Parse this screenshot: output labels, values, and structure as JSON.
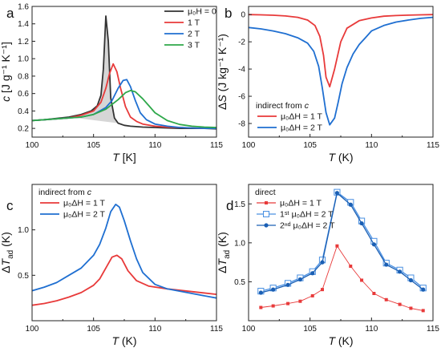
{
  "chart_data": [
    {
      "panel": "a",
      "type": "line",
      "xlabel": "T [K]",
      "ylabel": "c [J g⁻¹ K⁻¹]",
      "xlim": [
        100,
        115
      ],
      "ylim": [
        0.1,
        1.6
      ],
      "xticks": [
        100,
        105,
        110,
        115
      ],
      "yticks": [
        0.2,
        0.4,
        0.6,
        0.8,
        1.0,
        1.2,
        1.4,
        1.6
      ],
      "legend": {
        "placement": "top-right"
      },
      "shaded_area": {
        "color": "#c8c8c8"
      },
      "series": [
        {
          "name": "μ₀H = 0",
          "color": "#333333",
          "x": [
            100,
            101,
            102,
            103,
            104,
            104.8,
            105.3,
            105.6,
            105.8,
            106.0,
            106.2,
            106.4,
            106.7,
            107,
            107.5,
            108,
            109,
            110,
            111,
            112,
            113,
            114,
            115
          ],
          "y": [
            0.29,
            0.3,
            0.315,
            0.33,
            0.36,
            0.4,
            0.46,
            0.58,
            0.88,
            1.49,
            1.2,
            0.55,
            0.32,
            0.26,
            0.235,
            0.225,
            0.215,
            0.21,
            0.205,
            0.2,
            0.2,
            0.2,
            0.195
          ]
        },
        {
          "name": "1 T",
          "color": "#e83a3a",
          "x": [
            100,
            101,
            102,
            103,
            104,
            105,
            105.6,
            106,
            106.3,
            106.6,
            106.9,
            107.2,
            107.6,
            108,
            108.5,
            109,
            110,
            111,
            112,
            113,
            114,
            115
          ],
          "y": [
            0.29,
            0.3,
            0.31,
            0.32,
            0.35,
            0.4,
            0.5,
            0.66,
            0.83,
            0.94,
            0.85,
            0.66,
            0.45,
            0.33,
            0.28,
            0.25,
            0.225,
            0.215,
            0.21,
            0.205,
            0.2,
            0.2
          ]
        },
        {
          "name": "2 T",
          "color": "#1f6fd1",
          "x": [
            100,
            101,
            102,
            103,
            104,
            105,
            106,
            106.5,
            107,
            107.4,
            107.7,
            108,
            108.4,
            108.8,
            109.3,
            110,
            111,
            112,
            113,
            114,
            115
          ],
          "y": [
            0.29,
            0.3,
            0.31,
            0.32,
            0.33,
            0.36,
            0.44,
            0.52,
            0.66,
            0.75,
            0.76,
            0.68,
            0.52,
            0.38,
            0.3,
            0.25,
            0.225,
            0.21,
            0.205,
            0.2,
            0.2
          ]
        },
        {
          "name": "3 T",
          "color": "#2ea84a",
          "x": [
            100,
            101,
            102,
            103,
            104,
            105,
            106,
            107,
            107.6,
            108,
            108.4,
            109,
            109.5,
            110,
            111,
            112,
            113,
            114,
            115
          ],
          "y": [
            0.29,
            0.3,
            0.31,
            0.32,
            0.33,
            0.36,
            0.42,
            0.53,
            0.61,
            0.635,
            0.62,
            0.54,
            0.46,
            0.38,
            0.29,
            0.245,
            0.225,
            0.215,
            0.21
          ]
        }
      ]
    },
    {
      "panel": "b",
      "type": "line",
      "xlabel": "T (K)",
      "ylabel": "ΔS (J kg⁻¹ K⁻¹)",
      "xlim": [
        100,
        115
      ],
      "ylim": [
        -9,
        0.6
      ],
      "xticks": [
        100,
        105,
        110,
        115
      ],
      "yticks": [
        -8,
        -6,
        -4,
        -2,
        0
      ],
      "legend": {
        "title": "indirect from c",
        "placement": "bottom-left"
      },
      "series": [
        {
          "name": "μ₀ΔH = 1 T",
          "color": "#e83a3a",
          "x": [
            100,
            101,
            102,
            103,
            104,
            104.8,
            105.4,
            105.8,
            106.1,
            106.3,
            106.6,
            107,
            107.5,
            108,
            109,
            110,
            111,
            112,
            113,
            114,
            115
          ],
          "y": [
            0,
            -0.02,
            -0.05,
            -0.1,
            -0.2,
            -0.4,
            -0.8,
            -1.6,
            -3.0,
            -4.6,
            -5.3,
            -4.0,
            -2.0,
            -1.0,
            -0.45,
            -0.25,
            -0.12,
            -0.07,
            -0.04,
            -0.02,
            0
          ]
        },
        {
          "name": "μ₀ΔH = 2 T",
          "color": "#1f6fd1",
          "x": [
            100,
            101,
            102,
            103,
            104,
            104.8,
            105.3,
            105.7,
            106,
            106.3,
            106.6,
            107,
            107.3,
            107.6,
            108,
            108.5,
            109,
            109.5,
            110,
            111,
            112,
            113,
            114,
            115
          ],
          "y": [
            -0.95,
            -1.05,
            -1.2,
            -1.4,
            -1.7,
            -2.1,
            -2.7,
            -3.8,
            -5.4,
            -7.2,
            -8.1,
            -7.6,
            -6.4,
            -5.1,
            -3.9,
            -2.9,
            -2.2,
            -1.7,
            -1.2,
            -0.8,
            -0.55,
            -0.4,
            -0.28,
            -0.2
          ]
        }
      ]
    },
    {
      "panel": "c",
      "type": "line",
      "xlabel": "T (K)",
      "ylabel": "ΔT_ad (K)",
      "xlim": [
        100,
        115
      ],
      "ylim": [
        0.0,
        1.5
      ],
      "xticks": [
        100,
        105,
        110,
        115
      ],
      "yticks": [
        0.5,
        1.0
      ],
      "legend": {
        "title": "indirect from c",
        "placement": "top-left"
      },
      "series": [
        {
          "name": "μ₀ΔH = 1 T",
          "color": "#e83a3a",
          "x": [
            100,
            101,
            102,
            103,
            104,
            105,
            105.5,
            106,
            106.5,
            106.9,
            107.3,
            107.8,
            108.5,
            109.5,
            111,
            113,
            115
          ],
          "y": [
            0.17,
            0.19,
            0.22,
            0.26,
            0.31,
            0.39,
            0.46,
            0.58,
            0.7,
            0.72,
            0.68,
            0.55,
            0.44,
            0.38,
            0.35,
            0.32,
            0.29
          ]
        },
        {
          "name": "μ₀ΔH = 2 T",
          "color": "#1f6fd1",
          "x": [
            100,
            101,
            102,
            103,
            104,
            105,
            105.5,
            106,
            106.4,
            106.8,
            107.1,
            107.5,
            108,
            108.5,
            109,
            110,
            111,
            113,
            115
          ],
          "y": [
            0.33,
            0.37,
            0.42,
            0.5,
            0.58,
            0.72,
            0.84,
            1.02,
            1.2,
            1.28,
            1.25,
            1.1,
            0.88,
            0.68,
            0.53,
            0.4,
            0.35,
            0.3,
            0.25
          ]
        }
      ]
    },
    {
      "panel": "d",
      "type": "scatter",
      "xlabel": "T (K)",
      "ylabel": "ΔT_ad (K)",
      "xlim": [
        100,
        115
      ],
      "ylim": [
        0.0,
        1.75
      ],
      "xticks": [
        100,
        105,
        110,
        115
      ],
      "yticks": [
        0.5,
        1.0,
        1.5
      ],
      "legend": {
        "title": "direct",
        "placement": "top-left"
      },
      "series": [
        {
          "name": "μ₀ΔH = 1 T",
          "color": "#e83a3a",
          "marker": "small-square",
          "x": [
            101,
            102,
            103.2,
            104.2,
            105.2,
            106,
            107.2,
            108.3,
            109.2,
            110.2,
            111.2,
            112.3,
            113.2,
            114.2
          ],
          "y": [
            0.17,
            0.19,
            0.22,
            0.25,
            0.32,
            0.4,
            0.96,
            0.7,
            0.52,
            0.35,
            0.27,
            0.21,
            0.16,
            0.13
          ]
        },
        {
          "name": "1ˢᵗ μ₀ΔH = 2 T",
          "color": "#4a90e2",
          "marker": "open-square",
          "x": [
            101,
            102,
            103.2,
            104.2,
            105.2,
            106,
            107.2,
            108.3,
            109.2,
            110.2,
            111.2,
            112.3,
            113.2,
            114.2
          ],
          "y": [
            0.38,
            0.42,
            0.48,
            0.55,
            0.63,
            0.78,
            1.65,
            1.52,
            1.28,
            1.02,
            0.74,
            0.65,
            0.55,
            0.42
          ]
        },
        {
          "name": "2ⁿᵈ μ₀ΔH = 2 T",
          "color": "#1a5fb4",
          "marker": "filled-circle",
          "x": [
            101,
            102,
            103.2,
            104.2,
            105.2,
            106,
            107.2,
            108.3,
            109.2,
            110.2,
            111.2,
            112.3,
            113.2,
            114.2
          ],
          "y": [
            0.36,
            0.4,
            0.46,
            0.53,
            0.61,
            0.75,
            1.64,
            1.49,
            1.25,
            0.98,
            0.72,
            0.63,
            0.52,
            0.4
          ]
        }
      ]
    }
  ]
}
